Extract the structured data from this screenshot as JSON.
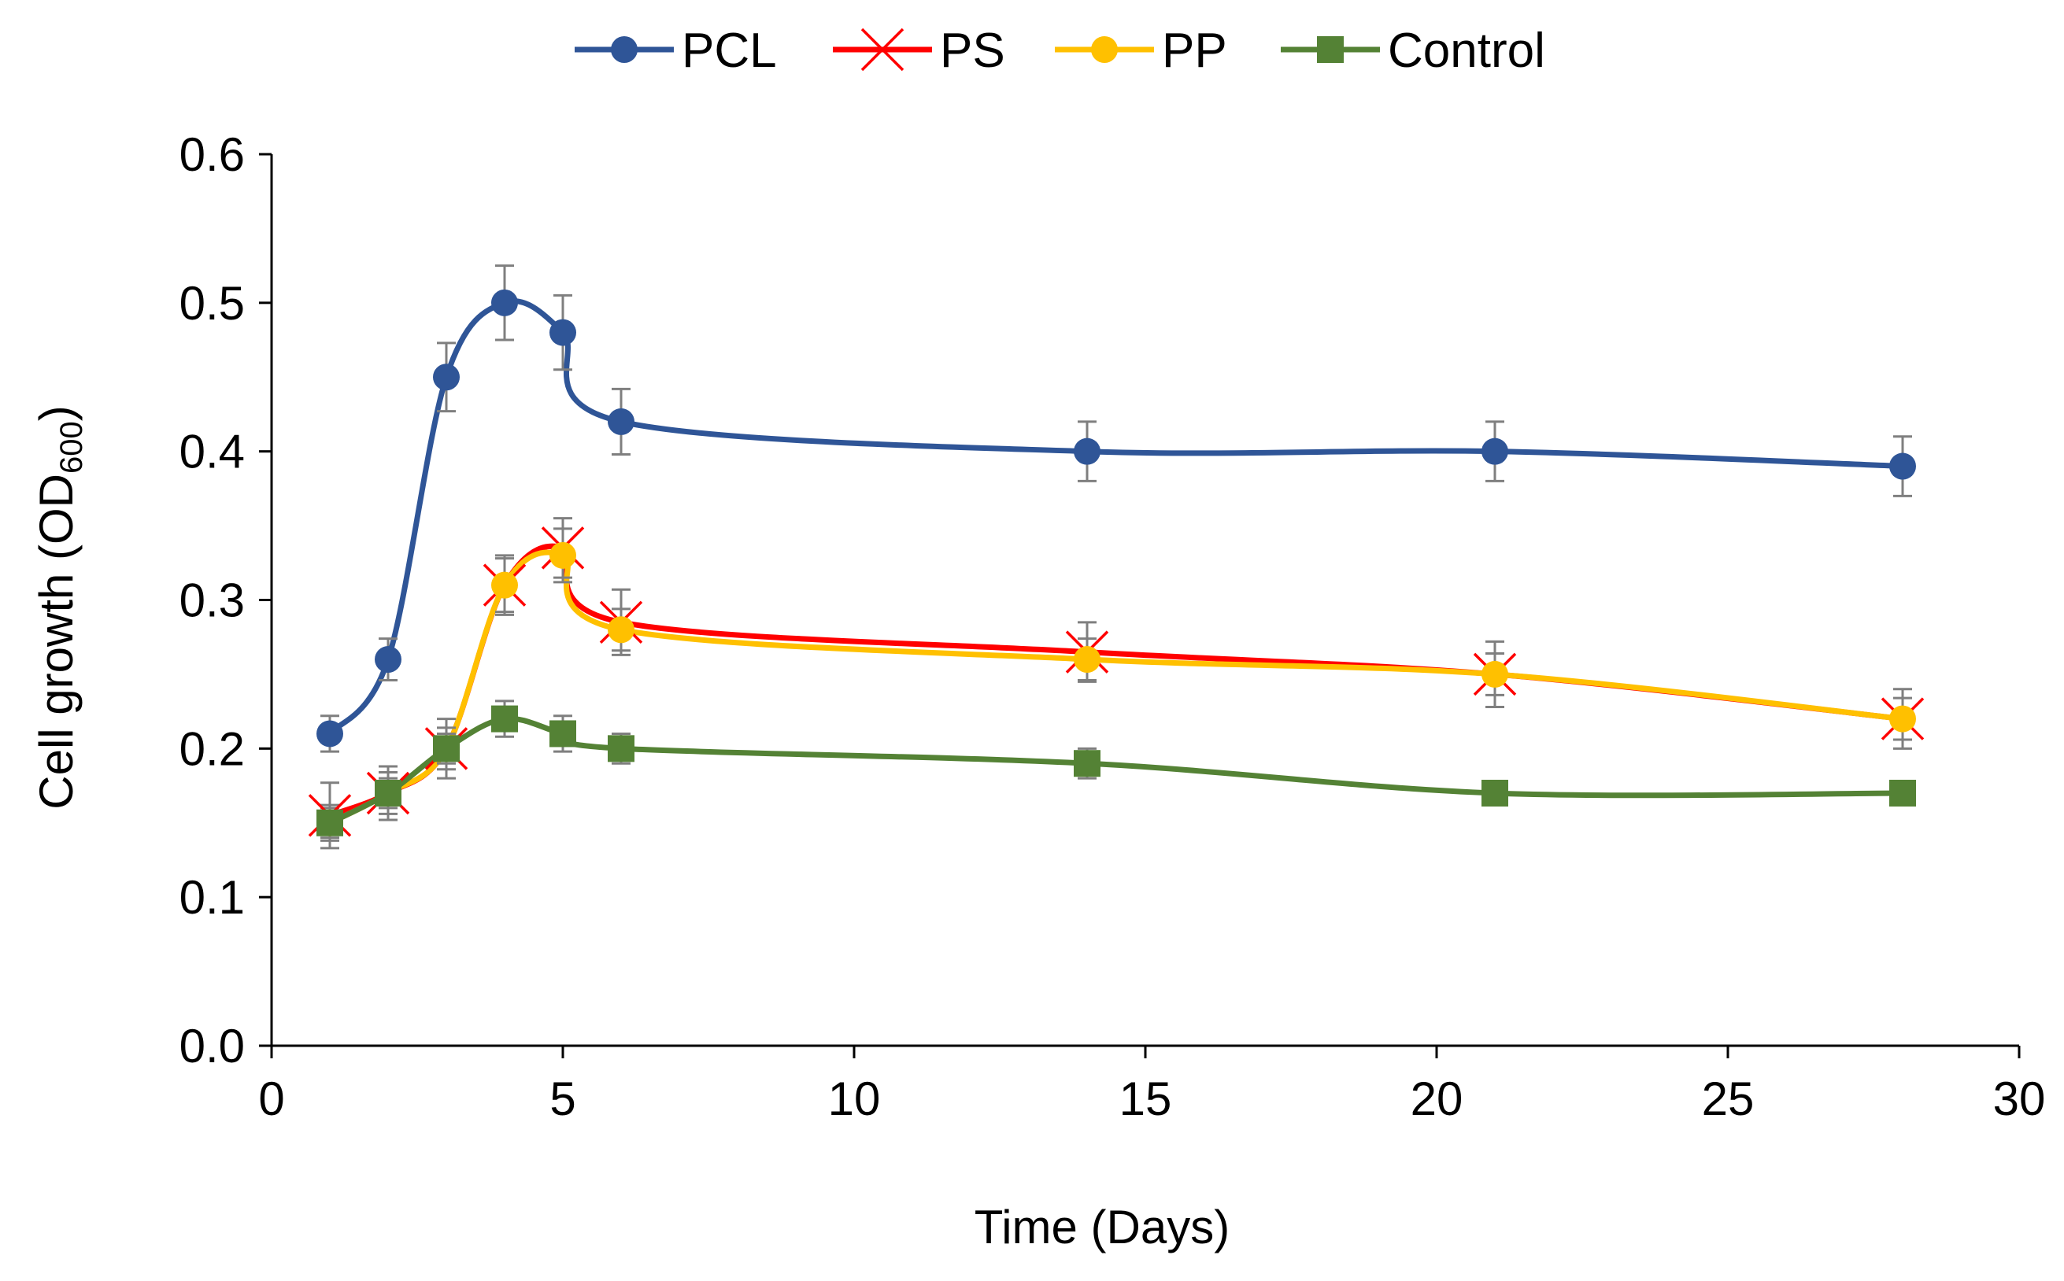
{
  "chart_data": {
    "type": "line",
    "title": "",
    "xlabel": "Time (Days)",
    "ylabel_main": "Cell growth (OD",
    "ylabel_sub": "600",
    "ylabel_close": ")",
    "xlim": [
      0,
      30
    ],
    "ylim": [
      0,
      0.6
    ],
    "x_ticks": [
      0,
      5,
      10,
      15,
      20,
      25,
      30
    ],
    "x_tick_labels": [
      "0",
      "5",
      "10",
      "15",
      "20",
      "25",
      "30"
    ],
    "y_ticks": [
      0,
      0.1,
      0.2,
      0.3,
      0.4,
      0.5,
      0.6
    ],
    "y_tick_labels": [
      "0.0",
      "0.1",
      "0.2",
      "0.3",
      "0.4",
      "0.5",
      "0.6"
    ],
    "grid": false,
    "legend_position": "top-center",
    "x": [
      1,
      2,
      3,
      4,
      5,
      6,
      14,
      21,
      28
    ],
    "series": [
      {
        "name": "PCL",
        "color": "#2F5597",
        "marker": "circle",
        "values": [
          0.21,
          0.26,
          0.45,
          0.5,
          0.48,
          0.42,
          0.4,
          0.4,
          0.39
        ],
        "errors": [
          0.012,
          0.014,
          0.023,
          0.025,
          0.025,
          0.022,
          0.02,
          0.02,
          0.02
        ]
      },
      {
        "name": "PS",
        "color": "#FF0000",
        "marker": "x",
        "values": [
          0.155,
          0.17,
          0.2,
          0.31,
          0.335,
          0.285,
          0.265,
          0.25,
          0.22
        ],
        "errors": [
          0.022,
          0.018,
          0.02,
          0.02,
          0.02,
          0.022,
          0.02,
          0.022,
          0.02
        ]
      },
      {
        "name": "PP",
        "color": "#FFC000",
        "marker": "circle",
        "values": [
          0.15,
          0.17,
          0.2,
          0.31,
          0.33,
          0.28,
          0.26,
          0.25,
          0.22
        ],
        "errors": [
          0.012,
          0.014,
          0.014,
          0.018,
          0.018,
          0.014,
          0.014,
          0.014,
          0.014
        ]
      },
      {
        "name": "Control",
        "color": "#548235",
        "marker": "square",
        "values": [
          0.15,
          0.17,
          0.2,
          0.22,
          0.21,
          0.2,
          0.19,
          0.17,
          0.17
        ],
        "errors": [
          0.01,
          0.01,
          0.01,
          0.012,
          0.012,
          0.01,
          0.01,
          0.008,
          0.008
        ]
      }
    ],
    "error_bar_color": "#7F7F7F",
    "axis_color": "#000000"
  }
}
